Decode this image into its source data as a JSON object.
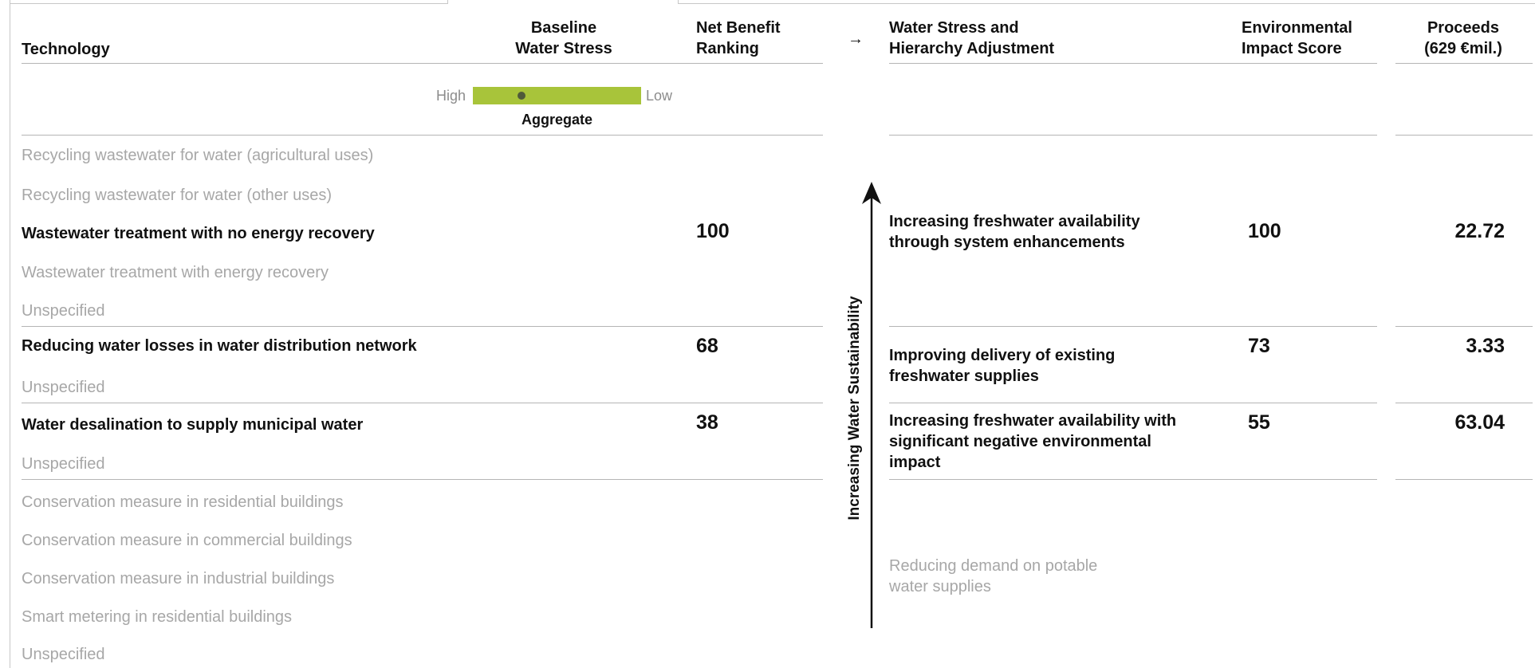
{
  "headers": {
    "technology": "Technology",
    "baseline_line1": "Baseline",
    "baseline_line2": "Water Stress",
    "net_line1": "Net Benefit",
    "net_line2": "Ranking",
    "arrow": "→",
    "stress_line1": "Water Stress and",
    "stress_line2": "Hierarchy Adjustment",
    "env_line1": "Environmental",
    "env_line2": "Impact Score",
    "proceeds_line1": "Proceeds",
    "proceeds_line2": "(629 €mil.)"
  },
  "scale": {
    "high": "High",
    "low": "Low",
    "aggregate": "Aggregate",
    "bar_color": "#a8c43a",
    "marker_position_fraction": 0.29
  },
  "axis_label": "Increasing Water Sustainability",
  "technologies": [
    {
      "label": "Recycling wastewater for water (agricultural uses)",
      "emphasis": false
    },
    {
      "label": "Recycling wastewater for water (other uses)",
      "emphasis": false
    },
    {
      "label": "Wastewater treatment with no energy recovery",
      "emphasis": true
    },
    {
      "label": "Wastewater treatment with energy recovery",
      "emphasis": false
    },
    {
      "label": "Unspecified",
      "emphasis": false
    },
    {
      "label": "Reducing water losses in water distribution network",
      "emphasis": true
    },
    {
      "label": "Unspecified",
      "emphasis": false
    },
    {
      "label": "Water desalination to supply municipal water",
      "emphasis": true
    },
    {
      "label": "Unspecified",
      "emphasis": false
    },
    {
      "label": "Conservation measure in residential buildings",
      "emphasis": false
    },
    {
      "label": "Conservation measure in commercial buildings",
      "emphasis": false
    },
    {
      "label": "Conservation measure in industrial buildings",
      "emphasis": false
    },
    {
      "label": "Smart metering in residential buildings",
      "emphasis": false
    },
    {
      "label": "Unspecified",
      "emphasis": false
    }
  ],
  "rankings": [
    "100",
    "68",
    "38"
  ],
  "categories": [
    {
      "line1": "Increasing freshwater availability",
      "line2": "through system enhancements",
      "line3": "",
      "score": "100",
      "proceeds": "22.72",
      "emphasis": true
    },
    {
      "line1": "Improving delivery of existing",
      "line2": "freshwater supplies",
      "line3": "",
      "score": "73",
      "proceeds": "3.33",
      "emphasis": true
    },
    {
      "line1": "Increasing freshwater availability with",
      "line2": "significant negative environmental",
      "line3": "impact",
      "score": "55",
      "proceeds": "63.04",
      "emphasis": true
    },
    {
      "line1": "Reducing demand on potable",
      "line2": "water supplies",
      "line3": "",
      "score": "",
      "proceeds": "",
      "emphasis": false
    }
  ]
}
